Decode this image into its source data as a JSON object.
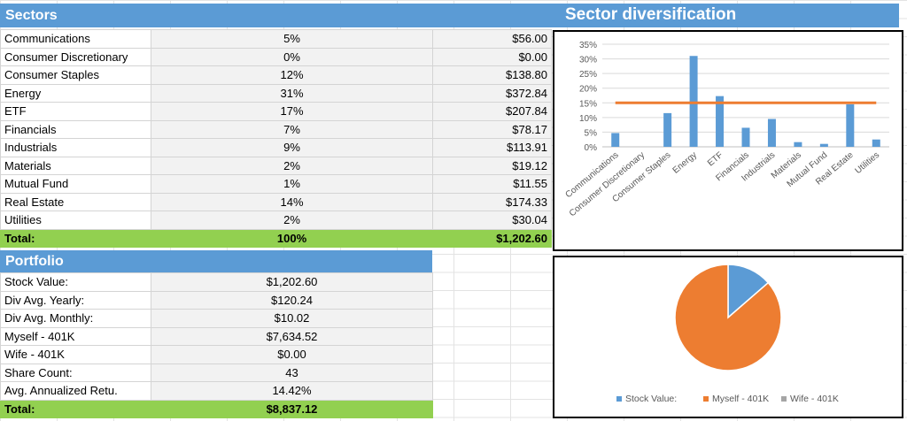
{
  "sectors": {
    "header": "Sectors",
    "rows": [
      {
        "name": "Communications",
        "pct": "5%",
        "amount": "$56.00"
      },
      {
        "name": "Consumer Discretionary",
        "pct": "0%",
        "amount": "$0.00"
      },
      {
        "name": "Consumer Staples",
        "pct": "12%",
        "amount": "$138.80"
      },
      {
        "name": "Energy",
        "pct": "31%",
        "amount": "$372.84"
      },
      {
        "name": "ETF",
        "pct": "17%",
        "amount": "$207.84"
      },
      {
        "name": "Financials",
        "pct": "7%",
        "amount": "$78.17"
      },
      {
        "name": "Industrials",
        "pct": "9%",
        "amount": "$113.91"
      },
      {
        "name": "Materials",
        "pct": "2%",
        "amount": "$19.12"
      },
      {
        "name": "Mutual Fund",
        "pct": "1%",
        "amount": "$11.55"
      },
      {
        "name": "Real Estate",
        "pct": "14%",
        "amount": "$174.33"
      },
      {
        "name": "Utilities",
        "pct": "2%",
        "amount": "$30.04"
      }
    ],
    "total": {
      "label": "Total:",
      "pct": "100%",
      "amount": "$1,202.60"
    }
  },
  "portfolio": {
    "header": "Portfolio",
    "rows": [
      {
        "label": "Stock Value:",
        "value": "$1,202.60"
      },
      {
        "label": "Div Avg. Yearly:",
        "value": "$120.24"
      },
      {
        "label": "Div Avg. Monthly:",
        "value": "$10.02"
      },
      {
        "label": "Myself - 401K",
        "value": "$7,634.52"
      },
      {
        "label": "Wife - 401K",
        "value": "$0.00"
      },
      {
        "label": "Share Count:",
        "value": "43"
      },
      {
        "label": "Avg. Annualized Retu.",
        "value": "14.42%"
      }
    ],
    "total": {
      "label": "Total:",
      "value": "$8,837.12"
    }
  },
  "diversification_title": "Sector diversification",
  "chart_data": [
    {
      "type": "bar",
      "categories": [
        "Communications",
        "Consumer Discretionary",
        "Consumer Staples",
        "Energy",
        "ETF",
        "Financials",
        "Industrials",
        "Materials",
        "Mutual Fund",
        "Real Estate",
        "Utilities"
      ],
      "values": [
        0.047,
        0.0,
        0.115,
        0.31,
        0.173,
        0.065,
        0.095,
        0.016,
        0.01,
        0.145,
        0.025
      ],
      "reference_line": 0.15,
      "ylim": [
        0,
        0.35
      ],
      "yticks": [
        "0%",
        "5%",
        "10%",
        "15%",
        "20%",
        "25%",
        "30%",
        "35%"
      ],
      "colors": {
        "bar": "#5b9bd5",
        "line": "#ed7d31"
      },
      "grid": true
    },
    {
      "type": "pie",
      "labels": [
        "Stock Value:",
        "Myself - 401K",
        "Wife - 401K"
      ],
      "values": [
        1202.6,
        7634.52,
        0.0
      ],
      "colors": [
        "#5b9bd5",
        "#ed7d31",
        "#a5a5a5"
      ],
      "legend": "bottom"
    }
  ]
}
